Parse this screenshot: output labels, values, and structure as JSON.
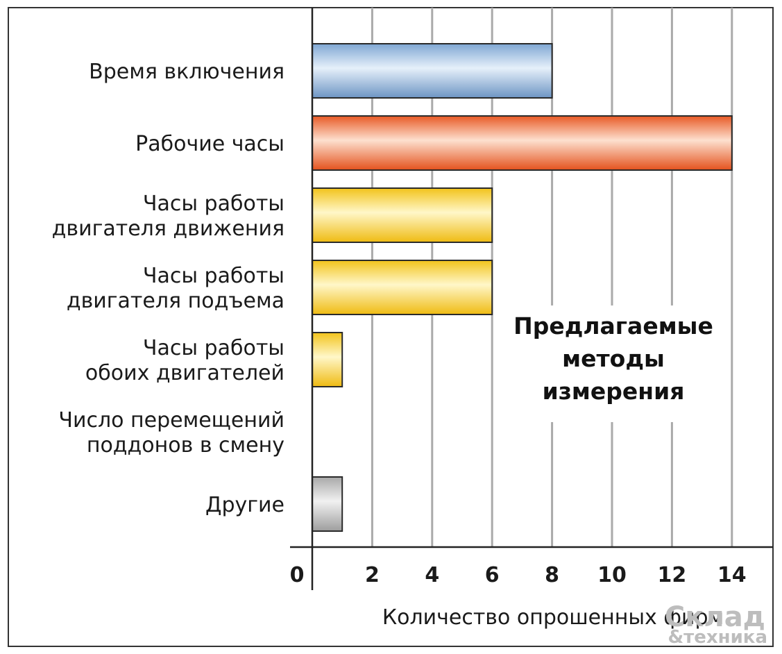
{
  "chart_data": {
    "type": "bar",
    "orientation": "horizontal",
    "categories": [
      [
        "Время включения"
      ],
      [
        "Рабочие часы"
      ],
      [
        "Часы работы",
        "двигателя движения"
      ],
      [
        "Часы работы",
        "двигателя подъема"
      ],
      [
        "Часы работы",
        "обоих двигателей"
      ],
      [
        "Число перемещений",
        "поддонов в смену"
      ],
      [
        "Другие"
      ]
    ],
    "values": [
      8,
      14,
      6,
      6,
      1,
      0,
      1
    ],
    "bar_colors": [
      "blue",
      "orange",
      "yellow",
      "yellow",
      "yellow",
      "none",
      "gray"
    ],
    "xlabel": "Количество опрошенных фирм",
    "xlim": [
      0,
      15
    ],
    "xticks": [
      "0",
      "2",
      "4",
      "6",
      "8",
      "10",
      "12",
      "14"
    ],
    "grid": true,
    "annotation": [
      "Предлагаемые",
      "методы",
      "измерения"
    ]
  },
  "watermark": {
    "line1": "Склад",
    "line2": "&техника"
  }
}
